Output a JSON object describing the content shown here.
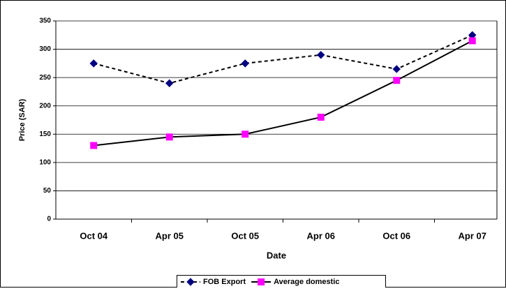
{
  "chart_data": {
    "type": "line",
    "x_label": "Date",
    "y_label": "Price (SAR)",
    "categories": [
      "Oct 04",
      "Apr 05",
      "Oct 05",
      "Apr 06",
      "Oct 06",
      "Apr 07"
    ],
    "series": [
      {
        "name": "FOB Export",
        "color": "#000080",
        "marker": "diamond",
        "line_color": "#000000",
        "dash": true,
        "values": [
          275,
          240,
          275,
          290,
          265,
          325
        ]
      },
      {
        "name": "Average domestic",
        "color": "#ff00ff",
        "marker": "square",
        "line_color": "#000000",
        "dash": false,
        "values": [
          130,
          145,
          150,
          180,
          245,
          315
        ]
      }
    ],
    "ylim": [
      0,
      350
    ],
    "yticks": [
      0,
      50,
      100,
      150,
      200,
      250,
      300,
      350
    ],
    "grid": true,
    "legend": "bottom"
  }
}
